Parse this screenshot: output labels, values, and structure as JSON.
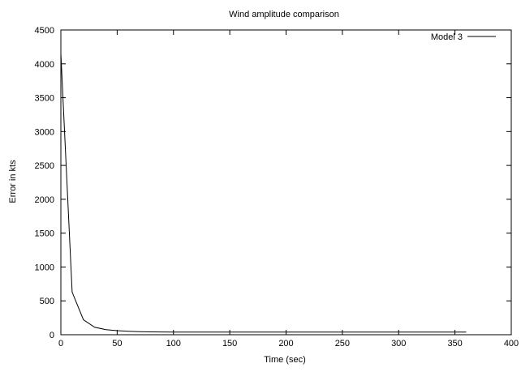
{
  "chart_data": {
    "type": "line",
    "title": "Wind amplitude comparison",
    "xlabel": "Time (sec)",
    "ylabel": "Error in kts",
    "xlim": [
      0,
      400
    ],
    "ylim": [
      0,
      4500
    ],
    "x_ticks": [
      0,
      50,
      100,
      150,
      200,
      250,
      300,
      350,
      400
    ],
    "y_ticks": [
      0,
      500,
      1000,
      1500,
      2000,
      2500,
      3000,
      3500,
      4000,
      4500
    ],
    "grid": false,
    "legend_position": "top-right",
    "series": [
      {
        "name": "Model 3",
        "color": "#000000",
        "x": [
          0,
          10,
          20,
          30,
          40,
          50,
          60,
          70,
          80,
          100,
          120,
          150,
          200,
          250,
          300,
          360
        ],
        "y": [
          4150,
          630,
          220,
          110,
          75,
          60,
          52,
          46,
          42,
          40,
          39,
          38,
          38,
          38,
          38,
          38
        ]
      }
    ]
  }
}
